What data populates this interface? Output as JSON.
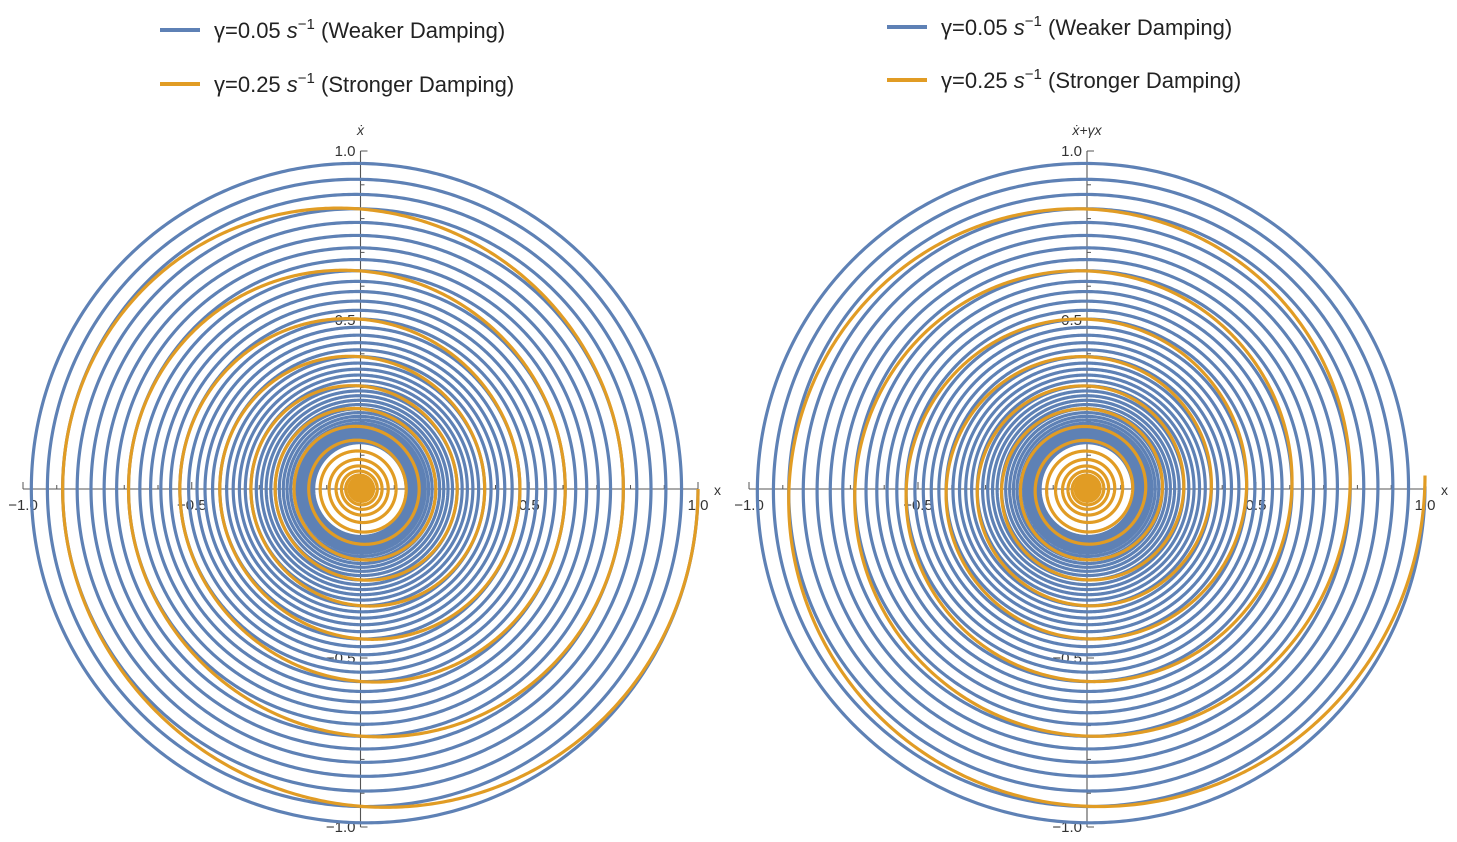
{
  "chart_data": [
    {
      "type": "line",
      "id": "left",
      "xlabel": "x",
      "ylabel": "ẋ",
      "xlim": [
        -1.0,
        1.0
      ],
      "ylim": [
        -1.0,
        1.0
      ],
      "x_tick_labels": [
        "−1.0",
        "−0.5",
        "0.5",
        "1.0"
      ],
      "y_tick_labels": [
        "1.0",
        "0.5",
        "−0.5",
        "−1.0"
      ],
      "legend_position": "top-left",
      "grid": false,
      "initial_state": {
        "x": 1.0,
        "v": 0.0
      },
      "series": [
        {
          "name_prefix": "γ=0.05 ",
          "name_unit_base": "s",
          "name_unit_exp": "−1",
          "name_suffix": " (Weaker Damping)",
          "gamma": 0.05,
          "color": "#5e81b5"
        },
        {
          "name_prefix": "γ=0.25 ",
          "name_unit_base": "s",
          "name_unit_exp": "−1",
          "name_suffix": " (Stronger Damping)",
          "gamma": 0.25,
          "color": "#e19c24"
        }
      ]
    },
    {
      "type": "line",
      "id": "right",
      "xlabel": "x",
      "ylabel": "ẋ+γx",
      "xlim": [
        -1.0,
        1.0
      ],
      "ylim": [
        -1.0,
        1.0
      ],
      "x_tick_labels": [
        "−1.0",
        "−0.5",
        "0.5",
        "1.0"
      ],
      "y_tick_labels": [
        "1.0",
        "0.5",
        "−0.5",
        "−1.0"
      ],
      "legend_position": "top-left",
      "grid": false,
      "initial_state": {
        "x": 1.0,
        "v": 0.0
      },
      "series": [
        {
          "name_prefix": "γ=0.05 ",
          "name_unit_base": "s",
          "name_unit_exp": "−1",
          "name_suffix": " (Weaker Damping)",
          "gamma": 0.05,
          "color": "#5e81b5"
        },
        {
          "name_prefix": "γ=0.25 ",
          "name_unit_base": "s",
          "name_unit_exp": "−1",
          "name_suffix": " (Stronger Damping)",
          "gamma": 0.25,
          "color": "#e19c24"
        }
      ]
    }
  ]
}
